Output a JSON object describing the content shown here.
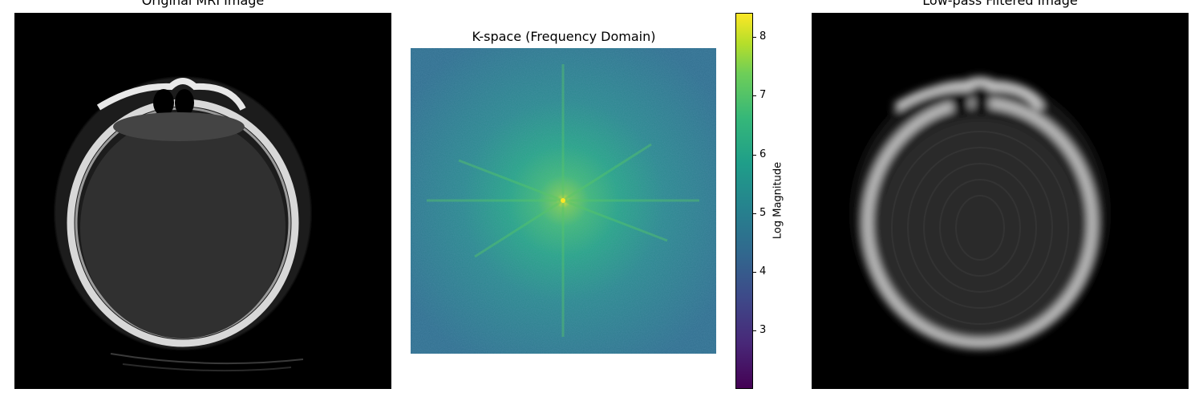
{
  "panels": {
    "original": {
      "title": "Original MRI Image"
    },
    "kspace": {
      "title": "K-space (Frequency Domain)"
    },
    "filtered": {
      "title": "Low-pass Filtered Image"
    }
  },
  "colorbar": {
    "label": "Log Magnitude",
    "ticks": [
      "3",
      "4",
      "5",
      "6",
      "7",
      "8"
    ],
    "range": [
      2.0,
      8.4
    ],
    "colormap": "viridis"
  },
  "colors": {
    "background": "#ffffff",
    "image_background": "#000000",
    "kspace_base": "#2f6f8e",
    "kspace_center": "#f5e61d"
  }
}
